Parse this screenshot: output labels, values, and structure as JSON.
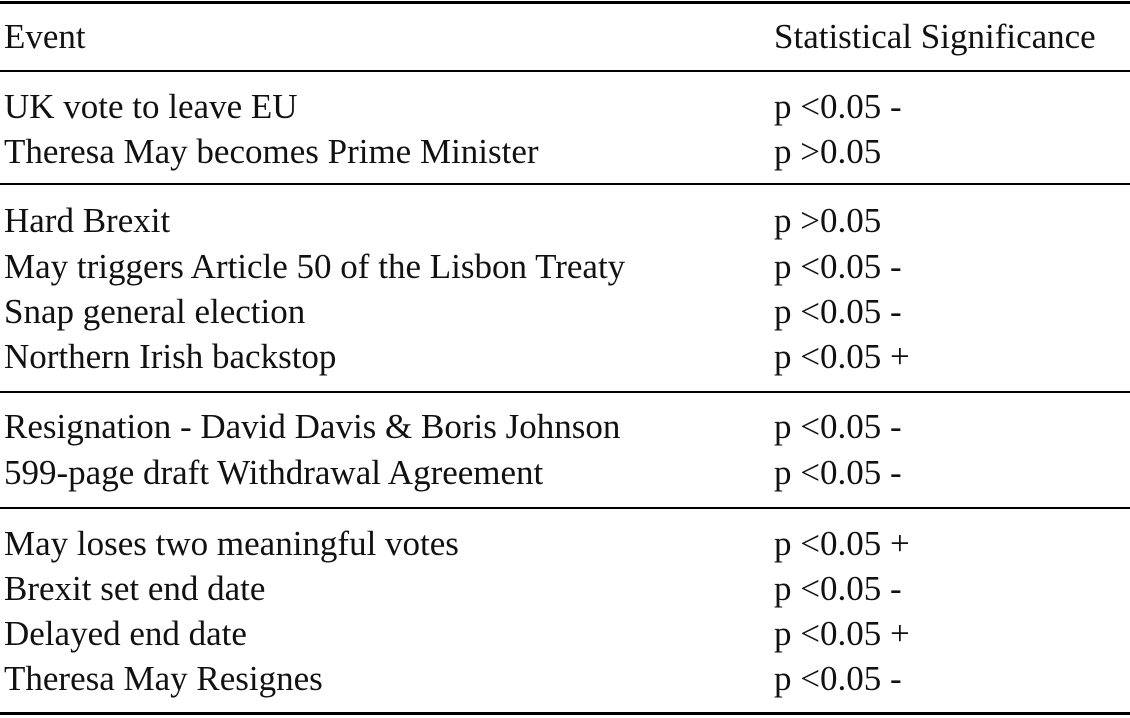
{
  "table": {
    "headers": {
      "event": "Event",
      "significance": "Statistical Significance"
    },
    "groups": [
      {
        "rows": [
          {
            "event": "UK vote to leave EU",
            "significance": "p <0.05 -"
          },
          {
            "event": "Theresa May becomes Prime Minister",
            "significance": "p >0.05"
          }
        ]
      },
      {
        "rows": [
          {
            "event": "Hard Brexit",
            "significance": "p >0.05"
          },
          {
            "event": "May triggers Article 50 of the Lisbon Treaty",
            "significance": "p <0.05 -"
          },
          {
            "event": "Snap general election",
            "significance": "p <0.05 -"
          },
          {
            "event": "Northern Irish backstop",
            "significance": "p <0.05 +"
          }
        ]
      },
      {
        "rows": [
          {
            "event": "Resignation - David Davis & Boris Johnson",
            "significance": "p <0.05 -"
          },
          {
            "event": "599-page draft Withdrawal Agreement",
            "significance": "p <0.05 -"
          }
        ]
      },
      {
        "rows": [
          {
            "event": "May loses two meaningful votes",
            "significance": "p <0.05 +"
          },
          {
            "event": "Brexit set end date",
            "significance": "p <0.05 -"
          },
          {
            "event": "Delayed end date",
            "significance": "p <0.05 +"
          },
          {
            "event": "Theresa May Resignes",
            "significance": "p <0.05 -"
          }
        ]
      }
    ]
  }
}
